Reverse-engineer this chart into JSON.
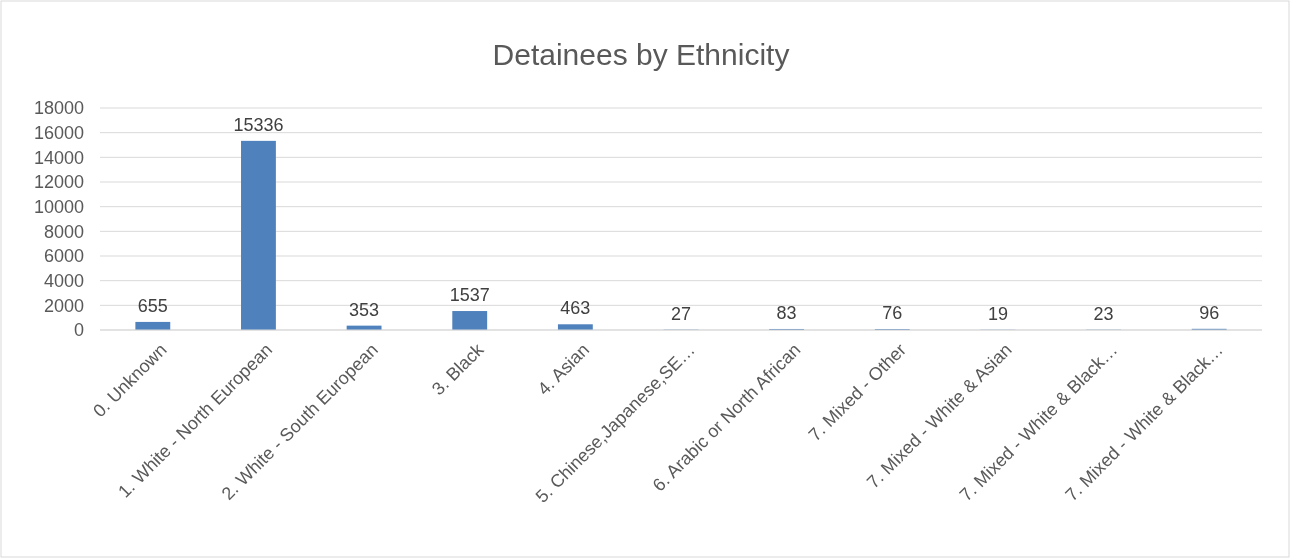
{
  "chart_data": {
    "type": "bar",
    "title": "Detainees by Ethnicity",
    "categories": [
      "0. Unknown",
      "1. White - North European",
      "2. White - South European",
      "3. Black",
      "4. Asian",
      "5. Chinese,Japanese,SE…",
      "6. Arabic or North African",
      "7. Mixed - Other",
      "7. Mixed - White & Asian",
      "7. Mixed - White & Black…",
      "7. Mixed - White & Black…"
    ],
    "values": [
      655,
      15336,
      353,
      1537,
      463,
      27,
      83,
      76,
      19,
      23,
      96
    ],
    "color": "#4f81bd",
    "ylim": [
      0,
      18000
    ],
    "yticks": [
      0,
      2000,
      4000,
      6000,
      8000,
      10000,
      12000,
      14000,
      16000,
      18000
    ],
    "grid": "y",
    "data_labels": true
  }
}
